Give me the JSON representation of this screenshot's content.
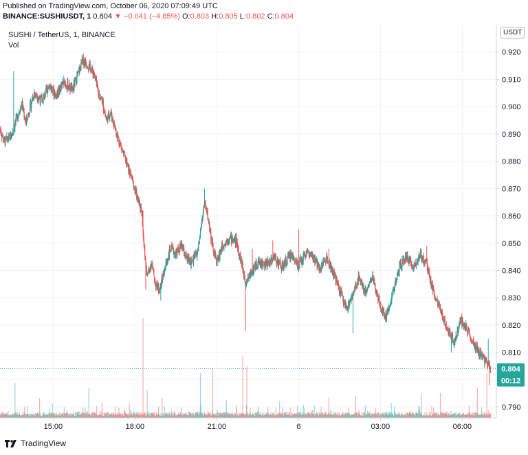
{
  "header": {
    "published": "Published on TradingView.com, October 06, 2020 07:09:49 UTC",
    "symbol": "BINANCE:SUSHIUSDT, 1",
    "last": "0.804",
    "change": "▼ −0.041 (−4.85%)",
    "o_label": "O:",
    "o_value": "0.803",
    "h_label": "H:",
    "h_value": "0.805",
    "l_label": "L:",
    "l_value": "0.802",
    "c_label": "C:",
    "c_value": "0.804"
  },
  "legend": {
    "title": "SUSHI / TetherUS, 1, BINANCE",
    "volume": "Vol"
  },
  "price_axis": {
    "unit": "USDT"
  },
  "price_badge": {
    "value": "0.804",
    "countdown": "00:12"
  },
  "footer": {
    "brand": "TradingView"
  },
  "colors": {
    "up": "#26a69a",
    "down": "#ef5350",
    "grid": "#f0f3fa",
    "axis_text": "#131722"
  },
  "chart_data": {
    "type": "candlestick",
    "title": "SUSHI / TetherUS, 1, BINANCE",
    "y_ticks": [
      0.79,
      0.8,
      0.81,
      0.82,
      0.83,
      0.84,
      0.85,
      0.86,
      0.87,
      0.88,
      0.89,
      0.9,
      0.91,
      0.92
    ],
    "ylim": [
      0.786,
      0.93
    ],
    "x_ticks": [
      "15:00",
      "18:00",
      "21:00",
      "6",
      "03:00",
      "06:00"
    ],
    "x_tick_hours": [
      15,
      18,
      21,
      24,
      27,
      30
    ],
    "xlim_hours": [
      13.05,
      31.25
    ],
    "current_price": 0.804,
    "grid": true,
    "price_path": [
      [
        13.05,
        0.892
      ],
      [
        13.2,
        0.887
      ],
      [
        13.45,
        0.889
      ],
      [
        13.7,
        0.897
      ],
      [
        13.85,
        0.901
      ],
      [
        14.0,
        0.894
      ],
      [
        14.3,
        0.905
      ],
      [
        14.6,
        0.902
      ],
      [
        14.85,
        0.908
      ],
      [
        15.1,
        0.904
      ],
      [
        15.4,
        0.909
      ],
      [
        15.7,
        0.906
      ],
      [
        15.95,
        0.913
      ],
      [
        16.1,
        0.917
      ],
      [
        16.3,
        0.915
      ],
      [
        16.5,
        0.912
      ],
      [
        16.65,
        0.905
      ],
      [
        16.8,
        0.902
      ],
      [
        16.95,
        0.895
      ],
      [
        17.1,
        0.898
      ],
      [
        17.3,
        0.891
      ],
      [
        17.5,
        0.885
      ],
      [
        17.7,
        0.879
      ],
      [
        17.9,
        0.873
      ],
      [
        18.1,
        0.866
      ],
      [
        18.25,
        0.862
      ],
      [
        18.35,
        0.846
      ],
      [
        18.45,
        0.838
      ],
      [
        18.6,
        0.843
      ],
      [
        18.75,
        0.835
      ],
      [
        18.9,
        0.833
      ],
      [
        19.1,
        0.841
      ],
      [
        19.3,
        0.848
      ],
      [
        19.5,
        0.846
      ],
      [
        19.7,
        0.849
      ],
      [
        19.9,
        0.844
      ],
      [
        20.1,
        0.843
      ],
      [
        20.3,
        0.847
      ],
      [
        20.45,
        0.858
      ],
      [
        20.55,
        0.865
      ],
      [
        20.7,
        0.858
      ],
      [
        20.85,
        0.848
      ],
      [
        21.0,
        0.843
      ],
      [
        21.2,
        0.849
      ],
      [
        21.45,
        0.852
      ],
      [
        21.7,
        0.851
      ],
      [
        21.9,
        0.843
      ],
      [
        22.05,
        0.836
      ],
      [
        22.25,
        0.839
      ],
      [
        22.5,
        0.843
      ],
      [
        22.8,
        0.842
      ],
      [
        23.1,
        0.845
      ],
      [
        23.4,
        0.841
      ],
      [
        23.7,
        0.846
      ],
      [
        24.0,
        0.842
      ],
      [
        24.3,
        0.847
      ],
      [
        24.55,
        0.844
      ],
      [
        24.8,
        0.841
      ],
      [
        25.05,
        0.845
      ],
      [
        25.3,
        0.838
      ],
      [
        25.5,
        0.833
      ],
      [
        25.75,
        0.826
      ],
      [
        26.0,
        0.831
      ],
      [
        26.2,
        0.838
      ],
      [
        26.45,
        0.832
      ],
      [
        26.7,
        0.838
      ],
      [
        26.95,
        0.828
      ],
      [
        27.2,
        0.823
      ],
      [
        27.45,
        0.832
      ],
      [
        27.7,
        0.841
      ],
      [
        27.95,
        0.845
      ],
      [
        28.2,
        0.841
      ],
      [
        28.45,
        0.846
      ],
      [
        28.7,
        0.842
      ],
      [
        28.95,
        0.832
      ],
      [
        29.2,
        0.825
      ],
      [
        29.45,
        0.819
      ],
      [
        29.7,
        0.814
      ],
      [
        29.95,
        0.822
      ],
      [
        30.2,
        0.818
      ],
      [
        30.45,
        0.812
      ],
      [
        30.7,
        0.809
      ],
      [
        30.9,
        0.806
      ],
      [
        31.05,
        0.804
      ]
    ],
    "spikes": [
      [
        13.55,
        0.913
      ],
      [
        16.05,
        0.919
      ],
      [
        18.3,
        0.862
      ],
      [
        18.4,
        0.833
      ],
      [
        18.95,
        0.829
      ],
      [
        20.55,
        0.87
      ],
      [
        22.05,
        0.818
      ],
      [
        22.3,
        0.848
      ],
      [
        23.05,
        0.851
      ],
      [
        24.0,
        0.855
      ],
      [
        25.1,
        0.848
      ],
      [
        26.0,
        0.817
      ],
      [
        26.6,
        0.834
      ],
      [
        27.1,
        0.826
      ],
      [
        28.7,
        0.849
      ],
      [
        29.6,
        0.81
      ],
      [
        30.6,
        0.81
      ],
      [
        30.95,
        0.815
      ],
      [
        31.0,
        0.798
      ]
    ],
    "volume_spikes": [
      [
        13.6,
        0.35
      ],
      [
        14.5,
        0.2
      ],
      [
        16.3,
        0.3
      ],
      [
        17.8,
        0.15
      ],
      [
        18.3,
        1.0
      ],
      [
        18.45,
        0.28
      ],
      [
        19.0,
        0.2
      ],
      [
        20.4,
        0.45
      ],
      [
        20.85,
        0.5
      ],
      [
        21.35,
        0.18
      ],
      [
        21.95,
        0.62
      ],
      [
        22.1,
        0.52
      ],
      [
        23.3,
        0.17
      ],
      [
        25.1,
        0.2
      ],
      [
        26.1,
        0.22
      ],
      [
        27.4,
        0.15
      ],
      [
        28.5,
        0.18
      ],
      [
        29.2,
        0.25
      ],
      [
        30.55,
        0.3
      ],
      [
        30.9,
        0.45
      ],
      [
        31.05,
        0.42
      ]
    ]
  }
}
